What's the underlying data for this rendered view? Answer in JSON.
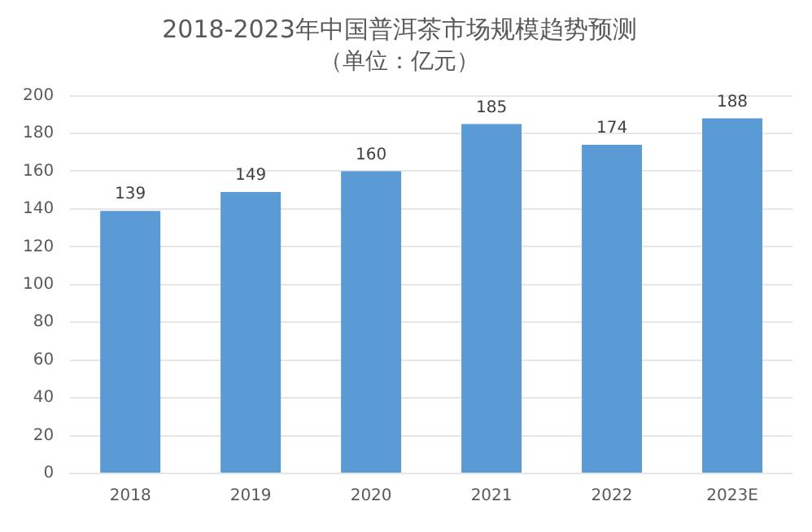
{
  "chart_data": {
    "type": "bar",
    "title": "2018-2023年中国普洱茶市场规模趋势预测",
    "subtitle": "（单位：亿元）",
    "categories": [
      "2018",
      "2019",
      "2020",
      "2021",
      "2022",
      "2023E"
    ],
    "values": [
      139,
      149,
      160,
      185,
      174,
      188
    ],
    "color": "#5b9bd5",
    "ylim": [
      0,
      200
    ],
    "yticks": [
      0,
      20,
      40,
      60,
      80,
      100,
      120,
      140,
      160,
      180,
      200
    ],
    "grid": "y",
    "data_labels": true,
    "legend": false
  }
}
